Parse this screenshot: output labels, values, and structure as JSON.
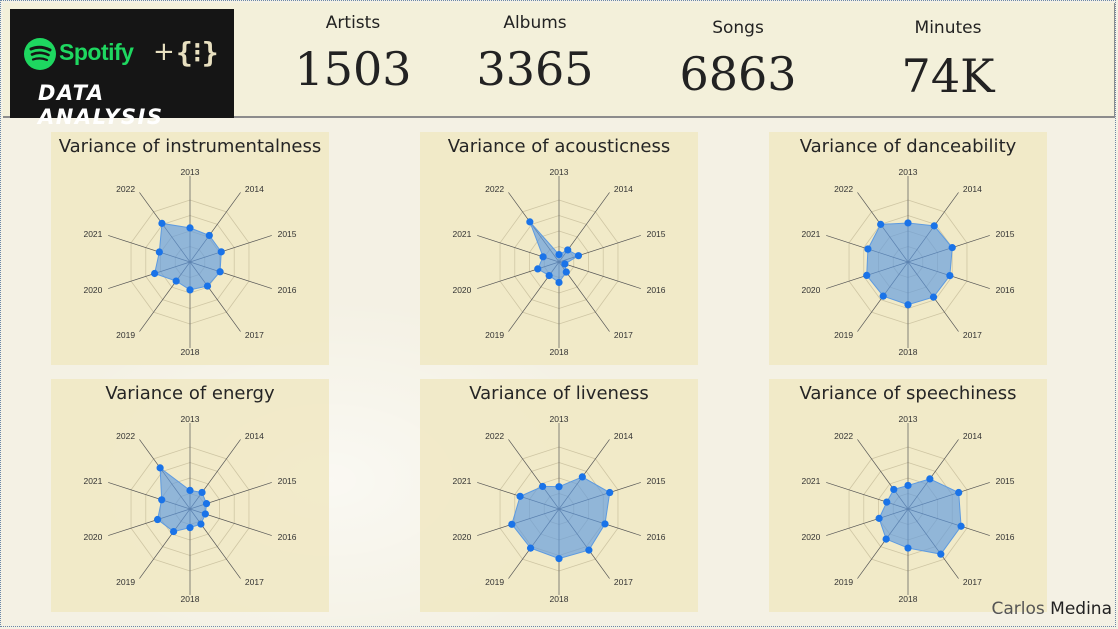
{
  "header": {
    "logo_brand": "Spotify",
    "logo_plus": "+",
    "logo_brace": "{⁝}",
    "logo_subtitle": "DATA ANALYSIS",
    "kpis": [
      {
        "label": "Artists",
        "value": "1503"
      },
      {
        "label": "Albums",
        "value": "3365"
      },
      {
        "label": "Songs",
        "value": "6863"
      },
      {
        "label": "Minutes",
        "value": "74K"
      }
    ]
  },
  "colors": {
    "spotify_green": "#1ed760",
    "point": "#1a73e8",
    "fill": "#5d9ae0"
  },
  "chart_data": [
    {
      "type": "radar",
      "title": "Variance of instrumentalness",
      "categories": [
        "2013",
        "2014",
        "2015",
        "2016",
        "2017",
        "2018",
        "2019",
        "2020",
        "2021",
        "2022"
      ],
      "values": [
        0.55,
        0.53,
        0.53,
        0.51,
        0.48,
        0.45,
        0.38,
        0.6,
        0.52,
        0.77
      ],
      "rmax": 1
    },
    {
      "type": "radar",
      "title": "Variance of acousticness",
      "categories": [
        "2013",
        "2014",
        "2015",
        "2016",
        "2017",
        "2018",
        "2019",
        "2020",
        "2021",
        "2022"
      ],
      "values": [
        0.12,
        0.24,
        0.33,
        0.1,
        0.2,
        0.33,
        0.27,
        0.36,
        0.27,
        0.8
      ],
      "rmax": 1
    },
    {
      "type": "radar",
      "title": "Variance of danceability",
      "categories": [
        "2013",
        "2014",
        "2015",
        "2016",
        "2017",
        "2018",
        "2019",
        "2020",
        "2021",
        "2022"
      ],
      "values": [
        0.63,
        0.72,
        0.75,
        0.71,
        0.7,
        0.69,
        0.68,
        0.7,
        0.68,
        0.75
      ],
      "rmax": 1
    },
    {
      "type": "radar",
      "title": "Variance of energy",
      "categories": [
        "2013",
        "2014",
        "2015",
        "2016",
        "2017",
        "2018",
        "2019",
        "2020",
        "2021",
        "2022"
      ],
      "values": [
        0.3,
        0.33,
        0.28,
        0.26,
        0.3,
        0.3,
        0.45,
        0.55,
        0.48,
        0.82
      ],
      "rmax": 1
    },
    {
      "type": "radar",
      "title": "Variance of liveness",
      "categories": [
        "2013",
        "2014",
        "2015",
        "2016",
        "2017",
        "2018",
        "2019",
        "2020",
        "2021",
        "2022"
      ],
      "values": [
        0.36,
        0.64,
        0.86,
        0.78,
        0.82,
        0.8,
        0.78,
        0.8,
        0.66,
        0.45
      ],
      "rmax": 1
    },
    {
      "type": "radar",
      "title": "Variance of speechiness",
      "categories": [
        "2013",
        "2014",
        "2015",
        "2016",
        "2017",
        "2018",
        "2019",
        "2020",
        "2021",
        "2022"
      ],
      "values": [
        0.38,
        0.6,
        0.86,
        0.9,
        0.9,
        0.63,
        0.6,
        0.49,
        0.36,
        0.39
      ],
      "rmax": 1
    }
  ],
  "credit": {
    "first": "Carlos",
    "last": "Medina"
  }
}
